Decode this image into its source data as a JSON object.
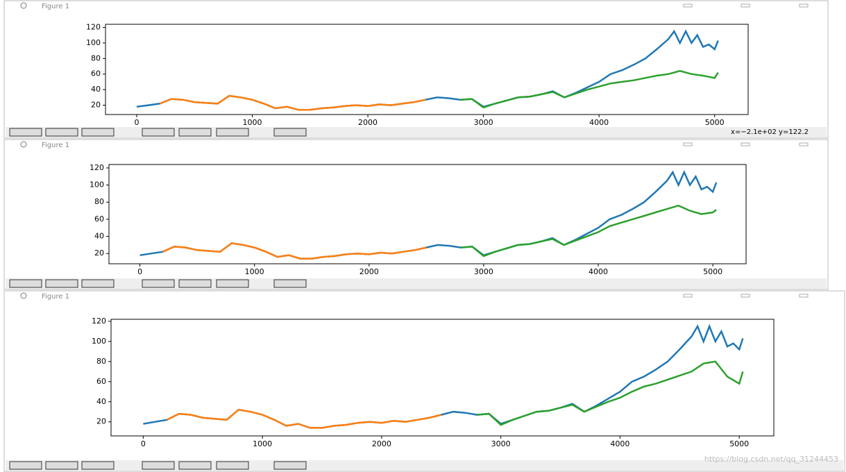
{
  "windows": [
    {
      "title": "Figure 1",
      "status": "x=−2.1e+02 y=122.2"
    },
    {
      "title": "Figure 1"
    },
    {
      "title": "Figure 1"
    }
  ],
  "watermark": "https://blog.csdn.net/qq_31244453",
  "chart_data": [
    {
      "type": "line",
      "xlim": [
        -270,
        5290
      ],
      "ylim": [
        8,
        124
      ],
      "xticks": [
        0,
        1000,
        2000,
        3000,
        4000,
        5000
      ],
      "yticks": [
        20,
        40,
        60,
        80,
        100,
        120
      ],
      "series": [
        {
          "color": "#1f77b4",
          "x": [
            0,
            100,
            200,
            300,
            400,
            500,
            600,
            700,
            800,
            900,
            1000,
            1100,
            1200,
            1300,
            1400,
            1500,
            1600,
            1700,
            1800,
            1900,
            2000,
            2100,
            2200,
            2300,
            2400,
            2500,
            2600,
            2700,
            2800,
            2900,
            3000,
            3100,
            3200,
            3300,
            3400,
            3500,
            3600,
            3700,
            3800,
            3900,
            4000,
            4100,
            4200,
            4300,
            4400,
            4500,
            4600,
            4650,
            4700,
            4750,
            4800,
            4850,
            4900,
            4950,
            5000,
            5030
          ],
          "values": [
            18,
            20,
            22,
            28,
            27,
            24,
            23,
            22,
            32,
            30,
            27,
            22,
            16,
            18,
            14,
            14,
            16,
            17,
            19,
            20,
            19,
            21,
            20,
            22,
            24,
            27,
            30,
            29,
            27,
            28,
            18,
            22,
            26,
            30,
            31,
            34,
            38,
            30,
            36,
            43,
            50,
            60,
            65,
            72,
            80,
            92,
            105,
            115,
            100,
            115,
            100,
            110,
            95,
            98,
            92,
            103
          ]
        },
        {
          "color": "#ff7f0e",
          "x": [
            200,
            300,
            400,
            500,
            600,
            700,
            800,
            900,
            1000,
            1100,
            1200,
            1300,
            1400,
            1500,
            1600,
            1700,
            1800,
            1900,
            2000,
            2100,
            2200,
            2300,
            2400,
            2500
          ],
          "values": [
            22,
            28,
            27,
            24,
            23,
            22,
            32,
            30,
            27,
            22,
            16,
            18,
            14,
            14,
            16,
            17,
            19,
            20,
            19,
            21,
            20,
            22,
            24,
            27
          ]
        },
        {
          "color": "#2ca02c",
          "x": [
            2800,
            2900,
            3000,
            3100,
            3200,
            3300,
            3400,
            3500,
            3600,
            3700,
            3800,
            3900,
            4000,
            4100,
            4200,
            4300,
            4400,
            4500,
            4600,
            4700,
            4800,
            4900,
            5000,
            5030
          ],
          "values": [
            27,
            28,
            17,
            22,
            26,
            30,
            31,
            34,
            37,
            30,
            35,
            40,
            44,
            48,
            50,
            52,
            55,
            58,
            60,
            64,
            60,
            58,
            55,
            62
          ]
        }
      ]
    },
    {
      "type": "line",
      "xlim": [
        -270,
        5290
      ],
      "ylim": [
        8,
        124
      ],
      "xticks": [
        0,
        1000,
        2000,
        3000,
        4000,
        5000
      ],
      "yticks": [
        20,
        40,
        60,
        80,
        100,
        120
      ],
      "series": [
        {
          "color": "#1f77b4",
          "x": [
            0,
            100,
            200,
            300,
            400,
            500,
            600,
            700,
            800,
            900,
            1000,
            1100,
            1200,
            1300,
            1400,
            1500,
            1600,
            1700,
            1800,
            1900,
            2000,
            2100,
            2200,
            2300,
            2400,
            2500,
            2600,
            2700,
            2800,
            2900,
            3000,
            3100,
            3200,
            3300,
            3400,
            3500,
            3600,
            3700,
            3800,
            3900,
            4000,
            4100,
            4200,
            4300,
            4400,
            4500,
            4600,
            4650,
            4700,
            4750,
            4800,
            4850,
            4900,
            4950,
            5000,
            5030
          ],
          "values": [
            18,
            20,
            22,
            28,
            27,
            24,
            23,
            22,
            32,
            30,
            27,
            22,
            16,
            18,
            14,
            14,
            16,
            17,
            19,
            20,
            19,
            21,
            20,
            22,
            24,
            27,
            30,
            29,
            27,
            28,
            18,
            22,
            26,
            30,
            31,
            34,
            38,
            30,
            36,
            43,
            50,
            60,
            65,
            72,
            80,
            92,
            105,
            115,
            100,
            115,
            100,
            110,
            95,
            98,
            92,
            103
          ]
        },
        {
          "color": "#ff7f0e",
          "x": [
            200,
            300,
            400,
            500,
            600,
            700,
            800,
            900,
            1000,
            1100,
            1200,
            1300,
            1400,
            1500,
            1600,
            1700,
            1800,
            1900,
            2000,
            2100,
            2200,
            2300,
            2400,
            2500
          ],
          "values": [
            22,
            28,
            27,
            24,
            23,
            22,
            32,
            30,
            27,
            22,
            16,
            18,
            14,
            14,
            16,
            17,
            19,
            20,
            19,
            21,
            20,
            22,
            24,
            27
          ]
        },
        {
          "color": "#2ca02c",
          "x": [
            2800,
            2900,
            3000,
            3100,
            3200,
            3300,
            3400,
            3500,
            3600,
            3700,
            3800,
            3900,
            4000,
            4100,
            4200,
            4300,
            4400,
            4500,
            4600,
            4700,
            4800,
            4900,
            5000,
            5030
          ],
          "values": [
            27,
            28,
            17,
            22,
            26,
            30,
            31,
            34,
            37,
            30,
            35,
            40,
            45,
            52,
            56,
            60,
            64,
            68,
            72,
            76,
            70,
            66,
            68,
            71
          ]
        }
      ]
    },
    {
      "type": "line",
      "xlim": [
        -270,
        5290
      ],
      "ylim": [
        6,
        122
      ],
      "xticks": [
        0,
        1000,
        2000,
        3000,
        4000,
        5000
      ],
      "yticks": [
        20,
        40,
        60,
        80,
        100,
        120
      ],
      "series": [
        {
          "color": "#1f77b4",
          "x": [
            0,
            100,
            200,
            300,
            400,
            500,
            600,
            700,
            800,
            900,
            1000,
            1100,
            1200,
            1300,
            1400,
            1500,
            1600,
            1700,
            1800,
            1900,
            2000,
            2100,
            2200,
            2300,
            2400,
            2500,
            2600,
            2700,
            2800,
            2900,
            3000,
            3100,
            3200,
            3300,
            3400,
            3500,
            3600,
            3700,
            3800,
            3900,
            4000,
            4100,
            4200,
            4300,
            4400,
            4500,
            4600,
            4650,
            4700,
            4750,
            4800,
            4850,
            4900,
            4950,
            5000,
            5030
          ],
          "values": [
            18,
            20,
            22,
            28,
            27,
            24,
            23,
            22,
            32,
            30,
            27,
            22,
            16,
            18,
            14,
            14,
            16,
            17,
            19,
            20,
            19,
            21,
            20,
            22,
            24,
            27,
            30,
            29,
            27,
            28,
            18,
            22,
            26,
            30,
            31,
            34,
            38,
            30,
            36,
            43,
            50,
            60,
            65,
            72,
            80,
            92,
            105,
            115,
            100,
            115,
            100,
            110,
            95,
            98,
            92,
            103
          ]
        },
        {
          "color": "#ff7f0e",
          "x": [
            200,
            300,
            400,
            500,
            600,
            700,
            800,
            900,
            1000,
            1100,
            1200,
            1300,
            1400,
            1500,
            1600,
            1700,
            1800,
            1900,
            2000,
            2100,
            2200,
            2300,
            2400,
            2500
          ],
          "values": [
            22,
            28,
            27,
            24,
            23,
            22,
            32,
            30,
            27,
            22,
            16,
            18,
            14,
            14,
            16,
            17,
            19,
            20,
            19,
            21,
            20,
            22,
            24,
            27
          ]
        },
        {
          "color": "#2ca02c",
          "x": [
            2800,
            2900,
            3000,
            3100,
            3200,
            3300,
            3400,
            3500,
            3600,
            3700,
            3800,
            3900,
            4000,
            4100,
            4200,
            4300,
            4400,
            4500,
            4600,
            4700,
            4800,
            4900,
            5000,
            5030
          ],
          "values": [
            27,
            28,
            17,
            22,
            26,
            30,
            31,
            34,
            37,
            30,
            35,
            40,
            44,
            50,
            55,
            58,
            62,
            66,
            70,
            78,
            80,
            65,
            58,
            70
          ]
        }
      ]
    }
  ]
}
